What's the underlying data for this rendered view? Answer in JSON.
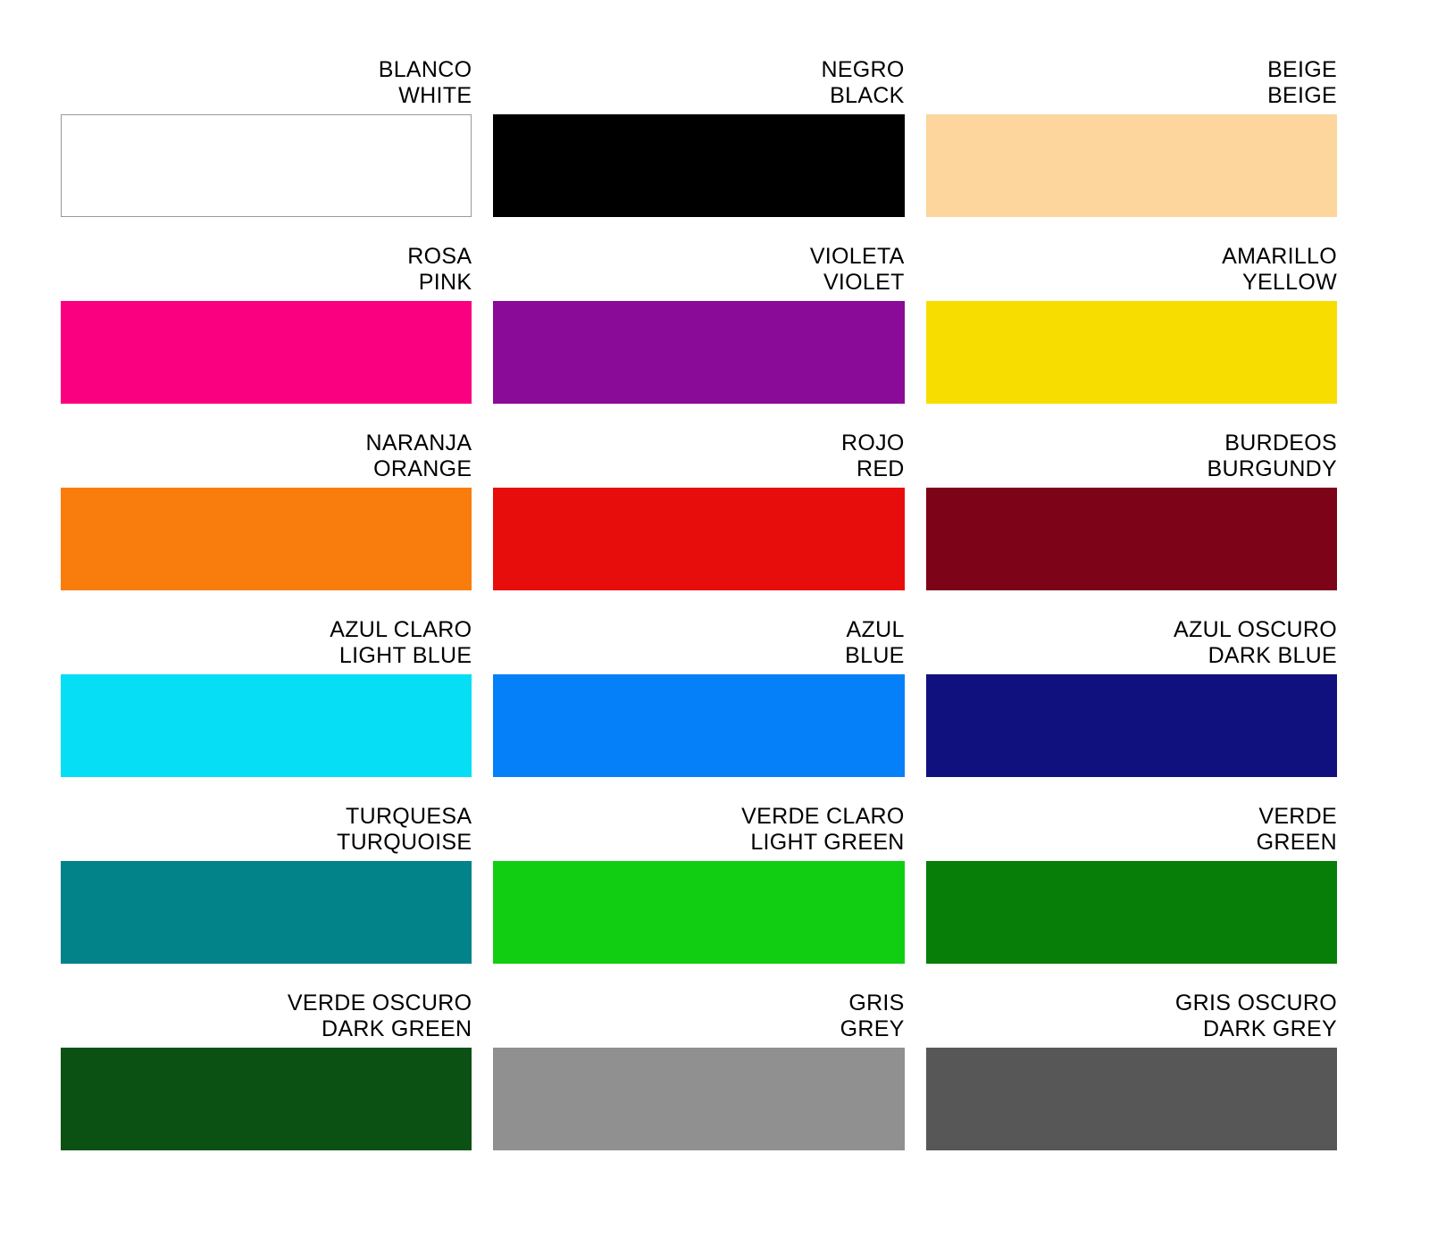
{
  "palette": {
    "background": "#FFFFFF",
    "text_color": "#000000",
    "swatches": [
      {
        "name_es": "BLANCO",
        "name_en": "WHITE",
        "color": "#FFFFFF",
        "border": "#999999"
      },
      {
        "name_es": "NEGRO",
        "name_en": "BLACK",
        "color": "#000000"
      },
      {
        "name_es": "BEIGE",
        "name_en": "BEIGE",
        "color": "#FCD69D"
      },
      {
        "name_es": "ROSA",
        "name_en": "PINK",
        "color": "#FA0080"
      },
      {
        "name_es": "VIOLETA",
        "name_en": "VIOLET",
        "color": "#8A0B97"
      },
      {
        "name_es": "AMARILLO",
        "name_en": "YELLOW",
        "color": "#F7DE00"
      },
      {
        "name_es": "NARANJA",
        "name_en": "ORANGE",
        "color": "#F87D0D"
      },
      {
        "name_es": "ROJO",
        "name_en": "RED",
        "color": "#E80D0D"
      },
      {
        "name_es": "BURDEOS",
        "name_en": "BURGUNDY",
        "color": "#7D0418"
      },
      {
        "name_es": "AZUL CLARO",
        "name_en": "LIGHT BLUE",
        "color": "#06DEF5"
      },
      {
        "name_es": "AZUL",
        "name_en": "BLUE",
        "color": "#0680F8"
      },
      {
        "name_es": "AZUL OSCURO",
        "name_en": "DARK BLUE",
        "color": "#10107E"
      },
      {
        "name_es": "TURQUESA",
        "name_en": "TURQUOISE",
        "color": "#028289"
      },
      {
        "name_es": "VERDE CLARO",
        "name_en": "LIGHT GREEN",
        "color": "#12CE12"
      },
      {
        "name_es": "VERDE",
        "name_en": "GREEN",
        "color": "#077E07"
      },
      {
        "name_es": "VERDE OSCURO",
        "name_en": "DARK GREEN",
        "color": "#0B5114"
      },
      {
        "name_es": "GRIS",
        "name_en": "GREY",
        "color": "#909090"
      },
      {
        "name_es": "GRIS OSCURO",
        "name_en": "DARK GREY",
        "color": "#575757"
      }
    ]
  }
}
